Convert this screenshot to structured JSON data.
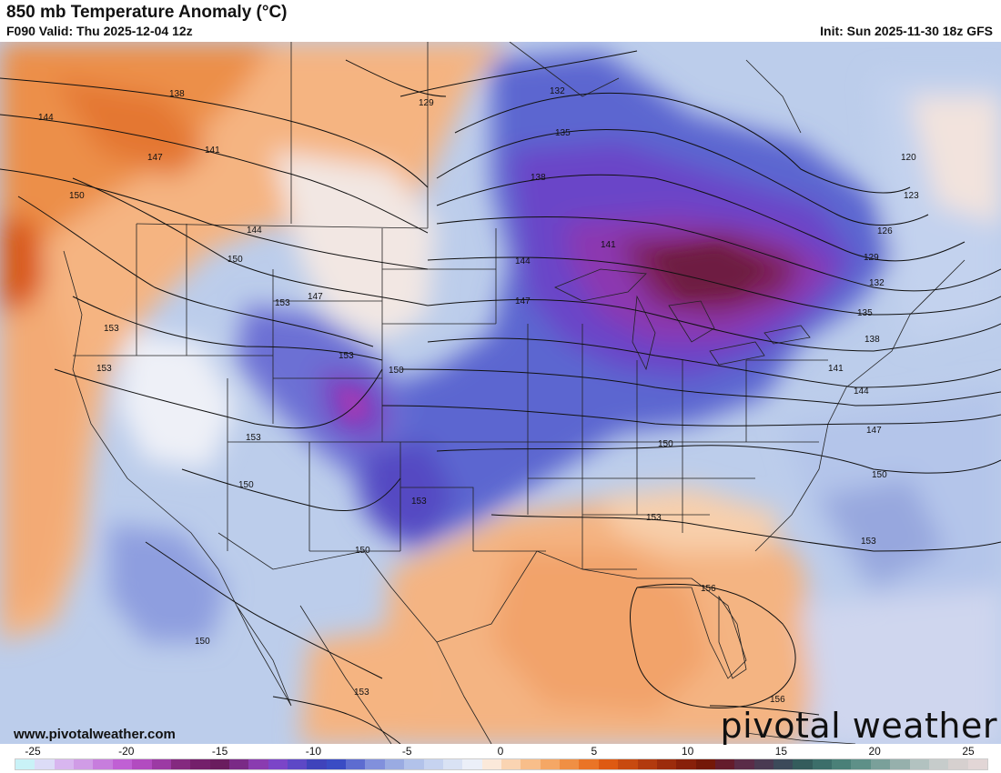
{
  "header": {
    "title": "850 mb Temperature Anomaly (°C)",
    "valid": "F090 Valid: Thu 2025-12-04 12z",
    "init": "Init: Sun 2025-11-30 18z GFS"
  },
  "footer": {
    "website": "www.pivotalweather.com",
    "logo": "pivotal weather"
  },
  "colorbar": {
    "ticks": [
      "-25",
      "-20",
      "-15",
      "-10",
      "-5",
      "0",
      "5",
      "10",
      "15",
      "20",
      "25"
    ],
    "colors": [
      "#c9f2f7",
      "#dcdcf7",
      "#d8b6ef",
      "#d09ce6",
      "#c77ddd",
      "#c060d4",
      "#b24bc0",
      "#9c3aa4",
      "#84297f",
      "#741f6b",
      "#6a1c5e",
      "#7a2a86",
      "#8a3cb0",
      "#7b45c8",
      "#5d48c6",
      "#3f43bb",
      "#3a4cc4",
      "#5d6cd0",
      "#8190dc",
      "#9aabe2",
      "#b2c2ea",
      "#c6d3f0",
      "#d9e2f4",
      "#ebeff8",
      "#fbe9da",
      "#fad4b2",
      "#f8be8a",
      "#f5a765",
      "#f08f44",
      "#ea7426",
      "#de5a12",
      "#c84a10",
      "#b23a0e",
      "#9c2c0c",
      "#88200a",
      "#741808",
      "#641c2c",
      "#5a2c48",
      "#4a3a52",
      "#3c4a5a",
      "#345c5c",
      "#3c6e6a",
      "#4a8078",
      "#5e9088",
      "#7aa09a",
      "#96b0ac",
      "#b2c2c0",
      "#c6cccb",
      "#d6d0cf",
      "#e2d6d6"
    ]
  },
  "map": {
    "contour_labels": [
      {
        "id": "c138-nw",
        "text": "138"
      },
      {
        "id": "c144-nw",
        "text": "144"
      },
      {
        "id": "c141-nw",
        "text": "141"
      },
      {
        "id": "c147-nw",
        "text": "147"
      },
      {
        "id": "c150-nw",
        "text": "150"
      },
      {
        "id": "c144-mt",
        "text": "144"
      },
      {
        "id": "c150-id",
        "text": "150"
      },
      {
        "id": "c147-wy",
        "text": "147"
      },
      {
        "id": "c153-wy",
        "text": "153"
      },
      {
        "id": "c153-or",
        "text": "153"
      },
      {
        "id": "c153-ca",
        "text": "153"
      },
      {
        "id": "c153-co",
        "text": "153"
      },
      {
        "id": "c150-ne",
        "text": "150"
      },
      {
        "id": "c153-az",
        "text": "153"
      },
      {
        "id": "c150-nv",
        "text": "150"
      },
      {
        "id": "c153-tx",
        "text": "153"
      },
      {
        "id": "c150-nm",
        "text": "150"
      },
      {
        "id": "c150-mx",
        "text": "150"
      },
      {
        "id": "c153-mx",
        "text": "153"
      },
      {
        "id": "c129-nd",
        "text": "129"
      },
      {
        "id": "c132-on",
        "text": "132"
      },
      {
        "id": "c135-on",
        "text": "135"
      },
      {
        "id": "c138-mn",
        "text": "138"
      },
      {
        "id": "c141-wi",
        "text": "141"
      },
      {
        "id": "c144-ia",
        "text": "144"
      },
      {
        "id": "c147-mo",
        "text": "147"
      },
      {
        "id": "c150-ky",
        "text": "150"
      },
      {
        "id": "c153-ga",
        "text": "153"
      },
      {
        "id": "c156-fl",
        "text": "156"
      },
      {
        "id": "c156-cu",
        "text": "156"
      },
      {
        "id": "c153-at",
        "text": "153"
      },
      {
        "id": "c150-at",
        "text": "150"
      },
      {
        "id": "c147-at",
        "text": "147"
      },
      {
        "id": "c144-ne",
        "text": "144"
      },
      {
        "id": "c141-ny",
        "text": "141"
      },
      {
        "id": "c138-me",
        "text": "138"
      },
      {
        "id": "c135-me",
        "text": "135"
      },
      {
        "id": "c132-qc",
        "text": "132"
      },
      {
        "id": "c129-qc",
        "text": "129"
      },
      {
        "id": "c126-qc",
        "text": "126"
      },
      {
        "id": "c123-qc",
        "text": "123"
      },
      {
        "id": "c120-qc",
        "text": "120"
      }
    ]
  }
}
